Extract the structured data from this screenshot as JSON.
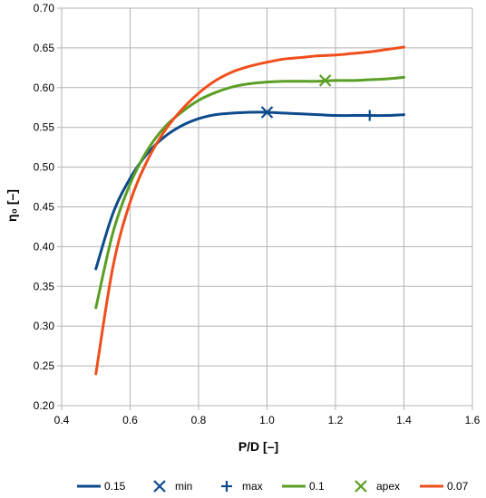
{
  "chart_data": {
    "type": "line",
    "xlabel": "P/D [–]",
    "ylabel": "η₀ [–]",
    "xlim": [
      0.4,
      1.6
    ],
    "ylim": [
      0.2,
      0.7
    ],
    "x_ticks": [
      "0.4",
      "0.6",
      "0.8",
      "1.0",
      "1.2",
      "1.4",
      "1.6"
    ],
    "y_ticks": [
      "0.20",
      "0.25",
      "0.30",
      "0.35",
      "0.40",
      "0.45",
      "0.50",
      "0.55",
      "0.60",
      "0.65",
      "0.70"
    ],
    "grid": true,
    "legend_position": "bottom",
    "series": [
      {
        "name": "0.15",
        "kind": "line",
        "color": "#0d4a8c",
        "x": [
          0.5,
          0.55,
          0.6,
          0.65,
          0.7,
          0.75,
          0.8,
          0.85,
          0.9,
          0.95,
          1.0,
          1.05,
          1.1,
          1.15,
          1.2,
          1.25,
          1.3,
          1.35,
          1.4
        ],
        "y": [
          0.372,
          0.442,
          0.486,
          0.517,
          0.538,
          0.552,
          0.561,
          0.566,
          0.568,
          0.569,
          0.569,
          0.568,
          0.567,
          0.566,
          0.565,
          0.565,
          0.565,
          0.565,
          0.566
        ]
      },
      {
        "name": "min",
        "kind": "marker",
        "marker": "x",
        "color": "#0d4a8c",
        "x": [
          1.0
        ],
        "y": [
          0.569
        ]
      },
      {
        "name": "max",
        "kind": "marker",
        "marker": "plus",
        "color": "#0d4a8c",
        "x": [
          1.3
        ],
        "y": [
          0.565
        ]
      },
      {
        "name": "0.1",
        "kind": "line",
        "color": "#5a9e23",
        "x": [
          0.5,
          0.55,
          0.6,
          0.65,
          0.7,
          0.75,
          0.8,
          0.85,
          0.9,
          0.95,
          1.0,
          1.05,
          1.1,
          1.15,
          1.2,
          1.25,
          1.3,
          1.35,
          1.4
        ],
        "y": [
          0.323,
          0.418,
          0.479,
          0.521,
          0.55,
          0.569,
          0.584,
          0.594,
          0.601,
          0.605,
          0.607,
          0.608,
          0.608,
          0.608,
          0.609,
          0.609,
          0.61,
          0.611,
          0.613
        ]
      },
      {
        "name": "apex",
        "kind": "marker",
        "marker": "x",
        "color": "#5a9e23",
        "x": [
          1.17
        ],
        "y": [
          0.609
        ]
      },
      {
        "name": "0.07",
        "kind": "line",
        "color": "#f04e1c",
        "x": [
          0.5,
          0.55,
          0.6,
          0.65,
          0.7,
          0.75,
          0.8,
          0.85,
          0.9,
          0.95,
          1.0,
          1.05,
          1.1,
          1.15,
          1.2,
          1.25,
          1.3,
          1.35,
          1.4
        ],
        "y": [
          0.24,
          0.375,
          0.456,
          0.508,
          0.545,
          0.572,
          0.593,
          0.609,
          0.62,
          0.627,
          0.632,
          0.636,
          0.638,
          0.64,
          0.641,
          0.643,
          0.645,
          0.648,
          0.651
        ]
      }
    ]
  }
}
